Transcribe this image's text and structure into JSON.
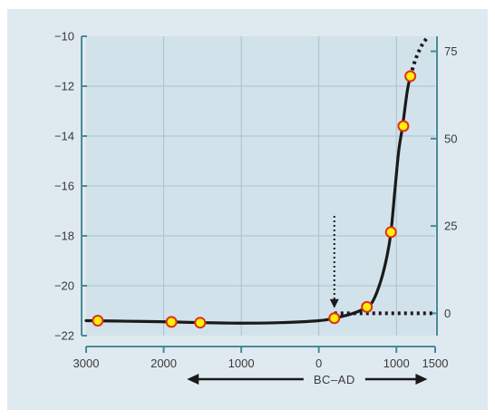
{
  "colors": {
    "panel_background": "#dfeaf0",
    "plot_background": "#d2e2ea",
    "gridline": "#a9c2cc",
    "axis": "#4a8a99",
    "curve": "#1a1a1a",
    "marker_fill": "#fff200",
    "marker_stroke": "#e0301e"
  },
  "chart_data": {
    "type": "line",
    "title": "",
    "xlabel": "BC–AD",
    "ylabel_left": "",
    "ylabel_right": "",
    "x_axis": {
      "min": -3000,
      "max": 1500,
      "ticks": [
        -3000,
        -2000,
        -1000,
        0,
        1000,
        1500
      ],
      "tick_labels": [
        "3000",
        "2000",
        "1000",
        "0",
        "1000",
        "1500"
      ],
      "grid_at": [
        -2000,
        -1000,
        0,
        1000
      ]
    },
    "y_axis_left": {
      "min": -22,
      "max": -10,
      "ticks": [
        -10,
        -12,
        -14,
        -16,
        -18,
        -20,
        -22
      ],
      "tick_labels": [
        "−10",
        "−12",
        "−14",
        "−16",
        "−18",
        "−20",
        "−22"
      ]
    },
    "y_axis_right": {
      "min": -6.4,
      "max": 79.3,
      "ticks": [
        0,
        25,
        50,
        75
      ],
      "tick_labels": [
        "0",
        "25",
        "50",
        "75"
      ]
    },
    "grid": true,
    "series": [
      {
        "style": "solid-curve",
        "axis": "left",
        "x": [
          -3000,
          -2500,
          -1900,
          -1500,
          -1000,
          -500,
          0,
          200,
          450,
          620,
          700,
          800,
          880,
          930,
          980,
          1030,
          1080,
          1140,
          1180
        ],
        "y": [
          -21.4,
          -21.42,
          -21.45,
          -21.48,
          -21.5,
          -21.48,
          -21.4,
          -21.3,
          -21.1,
          -20.85,
          -20.6,
          -19.8,
          -18.8,
          -17.85,
          -16.2,
          -14.6,
          -13.6,
          -12.2,
          -11.6
        ]
      },
      {
        "style": "dotted-extension",
        "axis": "left",
        "x": [
          1180,
          1250,
          1330,
          1400
        ],
        "y": [
          -11.6,
          -10.9,
          -10.35,
          -10.05
        ]
      },
      {
        "style": "dotted-baseline",
        "axis": "right",
        "x": [
          200,
          1500
        ],
        "y": [
          0,
          0
        ]
      },
      {
        "style": "markers",
        "axis": "left",
        "x": [
          -2850,
          -1900,
          -1530,
          200,
          620,
          930,
          1090,
          1180
        ],
        "y": [
          -21.4,
          -21.45,
          -21.48,
          -21.3,
          -20.85,
          -17.85,
          -13.6,
          -11.6
        ]
      }
    ],
    "annotations": [
      {
        "type": "dotted-arrow-down",
        "x": 200,
        "y_from": -17.2,
        "y_to": -20.9
      },
      {
        "type": "double-arrow",
        "direction": "left-right",
        "x_from": -1700,
        "x_to": 1400,
        "label": "BC–AD"
      }
    ]
  }
}
